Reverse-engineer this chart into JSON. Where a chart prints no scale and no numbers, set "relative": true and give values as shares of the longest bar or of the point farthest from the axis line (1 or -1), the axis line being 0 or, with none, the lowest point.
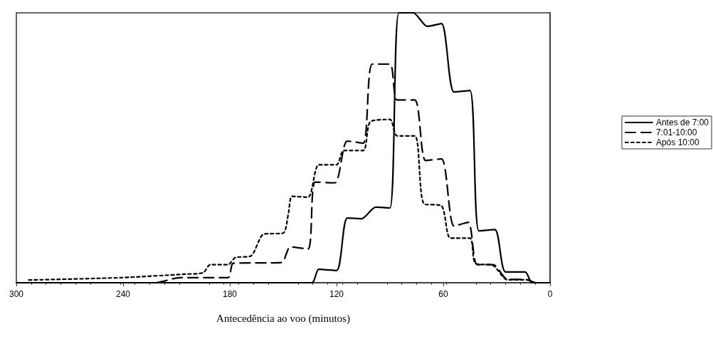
{
  "chart_data": {
    "type": "line",
    "relative": true,
    "xlabel": "Antecedência ao voo (minutos)",
    "xlim": [
      300,
      0
    ],
    "xticks": [
      300,
      240,
      180,
      120,
      60,
      0
    ],
    "grid": false,
    "legend": "right",
    "marker": "none",
    "series": [
      {
        "name": "Antes de 7:00",
        "color": "#000000",
        "line_style": "solid",
        "x": [
          300,
          222,
          134,
          130,
          120,
          114,
          106,
          98,
          90,
          85,
          77,
          69,
          61,
          54,
          45,
          40,
          31,
          25,
          14,
          10,
          0
        ],
        "values": [
          0,
          0,
          0,
          0.05,
          0.045,
          0.24,
          0.237,
          0.28,
          0.277,
          1,
          1,
          0.95,
          0.96,
          0.707,
          0.712,
          0.192,
          0.197,
          0.04,
          0.04,
          0,
          0
        ]
      },
      {
        "name": "7:01-10:00",
        "color": "#000000",
        "line_style": "dashed",
        "x": [
          300,
          222,
          208,
          181,
          178,
          151,
          146,
          136,
          132,
          121,
          114,
          105,
          100,
          90,
          86,
          76,
          70,
          61,
          54,
          46,
          41,
          32,
          24,
          13,
          8,
          0
        ],
        "values": [
          0,
          0,
          0.019,
          0.019,
          0.072,
          0.075,
          0.133,
          0.125,
          0.373,
          0.37,
          0.525,
          0.517,
          0.81,
          0.81,
          0.677,
          0.677,
          0.453,
          0.459,
          0.21,
          0.224,
          0.067,
          0.067,
          0.013,
          0.011,
          0,
          0
        ]
      },
      {
        "name": "Após 10:00",
        "color": "#000000",
        "line_style": "dotted",
        "x": [
          293,
          241,
          205,
          195,
          191,
          181,
          177,
          168,
          161,
          150,
          147,
          145,
          136,
          130,
          120,
          116,
          105,
          101,
          90,
          86,
          76,
          71,
          61,
          56,
          45,
          42,
          32,
          24,
          13,
          8,
          0
        ],
        "values": [
          0.01,
          0.019,
          0.032,
          0.037,
          0.067,
          0.067,
          0.093,
          0.1,
          0.18,
          0.184,
          0.26,
          0.32,
          0.317,
          0.437,
          0.437,
          0.49,
          0.49,
          0.597,
          0.605,
          0.544,
          0.544,
          0.293,
          0.285,
          0.165,
          0.165,
          0.072,
          0.064,
          0.011,
          0.011,
          0,
          0
        ]
      }
    ]
  }
}
